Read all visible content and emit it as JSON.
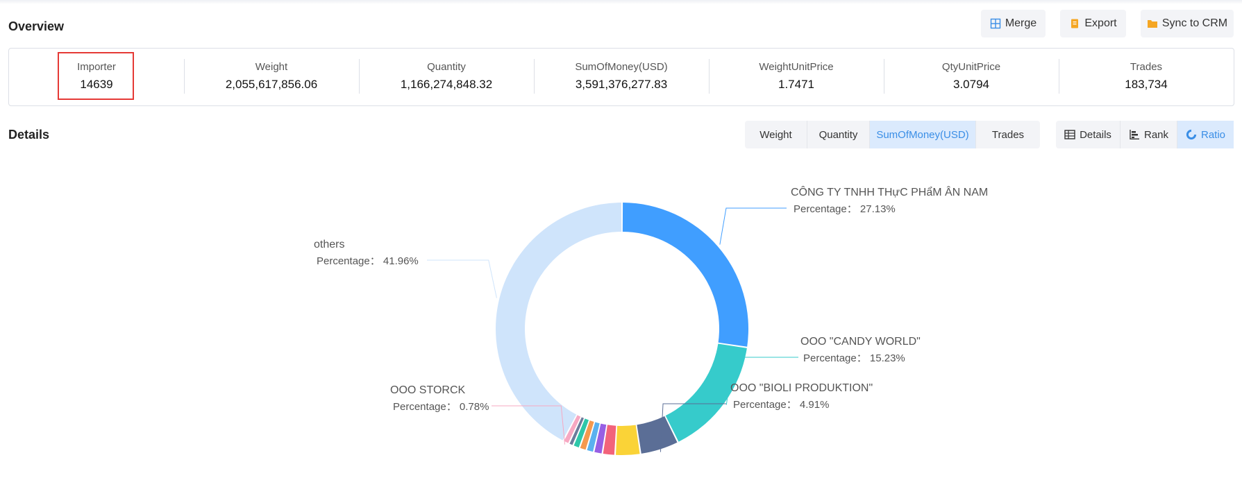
{
  "overview": {
    "title": "Overview",
    "buttons": {
      "merge": "Merge",
      "export": "Export",
      "sync": "Sync to CRM"
    },
    "stats": [
      {
        "label": "Importer",
        "value": "14639"
      },
      {
        "label": "Weight",
        "value": "2,055,617,856.06"
      },
      {
        "label": "Quantity",
        "value": "1,166,274,848.32"
      },
      {
        "label": "SumOfMoney(USD)",
        "value": "3,591,376,277.83"
      },
      {
        "label": "WeightUnitPrice",
        "value": "1.7471"
      },
      {
        "label": "QtyUnitPrice",
        "value": "3.0794"
      },
      {
        "label": "Trades",
        "value": "183,734"
      }
    ]
  },
  "details": {
    "title": "Details",
    "metric_tabs": [
      "Weight",
      "Quantity",
      "SumOfMoney(USD)",
      "Trades"
    ],
    "active_metric": "SumOfMoney(USD)",
    "view_tabs": [
      "Details",
      "Rank",
      "Ratio"
    ],
    "active_view": "Ratio"
  },
  "colors": {
    "accent": "#3a8ee6",
    "highlight_border": "#e53935"
  },
  "chart_data": {
    "type": "pie",
    "donut": true,
    "percentage_prefix": "Percentage：",
    "slices": [
      {
        "name": "CÔNG TY TNHH THựC PHẩM ÂN NAM",
        "value": 27.13,
        "label": "27.13%",
        "color": "#409eff",
        "labeled": true
      },
      {
        "name": "OOO \"CANDY WORLD\"",
        "value": 15.23,
        "label": "15.23%",
        "color": "#36cbcb",
        "labeled": true
      },
      {
        "name": "OOO \"BIOLI PRODUKTION\"",
        "value": 4.91,
        "label": "4.91%",
        "color": "#5b6e96",
        "labeled": true
      },
      {
        "name": "",
        "value": 3.2,
        "color": "#fad337",
        "labeled": false
      },
      {
        "name": "",
        "value": 1.6,
        "color": "#f2637b",
        "labeled": false
      },
      {
        "name": "",
        "value": 1.1,
        "color": "#975fe4",
        "labeled": false
      },
      {
        "name": "",
        "value": 0.95,
        "color": "#5ab1ef",
        "labeled": false
      },
      {
        "name": "",
        "value": 0.9,
        "color": "#f5994e",
        "labeled": false
      },
      {
        "name": "",
        "value": 0.85,
        "color": "#2ec7a9",
        "labeled": false
      },
      {
        "name": "",
        "value": 0.58,
        "color": "#6c7b9b",
        "labeled": false
      },
      {
        "name": "OOO STORCK",
        "value": 0.78,
        "label": "0.78%",
        "color": "#f7a8c2",
        "labeled": true
      },
      {
        "name": "others",
        "value": 41.96,
        "label": "41.96%",
        "color": "#cfe4fb",
        "labeled": true
      }
    ]
  }
}
